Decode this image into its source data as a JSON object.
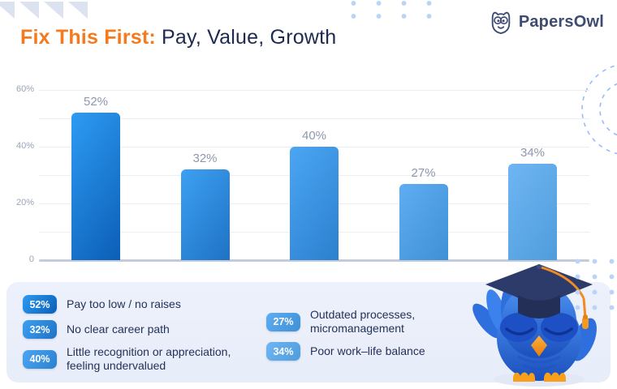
{
  "title": {
    "highlight": "Fix This First:",
    "rest": " Pay, Value, Growth"
  },
  "brand": {
    "name": "PapersOwl"
  },
  "colors": {
    "accent_orange": "#F5791D",
    "navy": "#1E2A50",
    "logo_navy": "#3E4C74",
    "panel_bg": "#ECF1FB",
    "grid_line": "#ECEEF4",
    "axis_line": "#C6CBD9",
    "tick_text": "#9AA3B8",
    "value_text": "#8E97AE",
    "dot_blue": "#B9D4F9",
    "dashed_circle": "#85B2F4"
  },
  "chart_data": {
    "type": "bar",
    "title": "Fix This First: Pay, Value, Growth",
    "categories": [
      "Pay too low / no raises",
      "No clear career path",
      "Little recognition or appreciation, feeling undervalued",
      "Outdated processes, micromanagement",
      "Poor work–life balance"
    ],
    "values": [
      52,
      32,
      40,
      27,
      34
    ],
    "value_labels": [
      "52%",
      "32%",
      "40%",
      "27%",
      "34%"
    ],
    "xlabel": "",
    "ylabel": "",
    "ylim": [
      0,
      60
    ],
    "yticks": [
      {
        "label": "60%",
        "value": 60
      },
      {
        "label": "40%",
        "value": 40
      },
      {
        "label": "20%",
        "value": 20
      },
      {
        "label": "0",
        "value": 0
      }
    ],
    "gridline_values": [
      10,
      20,
      30,
      40,
      50,
      60
    ],
    "grid": true,
    "legend_position": "bottom-panel",
    "bar_colors": [
      [
        "#2D9BF3",
        "#0C5EB6"
      ],
      [
        "#3DA0F2",
        "#1F72C4"
      ],
      [
        "#4BA6F3",
        "#2C80CE"
      ],
      [
        "#5FADF2",
        "#3F90D6"
      ],
      [
        "#6FB5F3",
        "#4F9DDC"
      ]
    ]
  },
  "legend": {
    "columns": [
      {
        "items": [
          {
            "badge": "52%",
            "label": "Pay too low / no raises",
            "color_index": 0
          },
          {
            "badge": "32%",
            "label": "No clear career path",
            "color_index": 1
          },
          {
            "badge": "40%",
            "label": "Little recognition or appreciation, feeling undervalued",
            "color_index": 2
          }
        ]
      },
      {
        "items": [
          {
            "badge": "27%",
            "label": "Outdated processes, micromanagement",
            "color_index": 3
          },
          {
            "badge": "34%",
            "label": "Poor work–life balance",
            "color_index": 4
          }
        ]
      }
    ]
  }
}
